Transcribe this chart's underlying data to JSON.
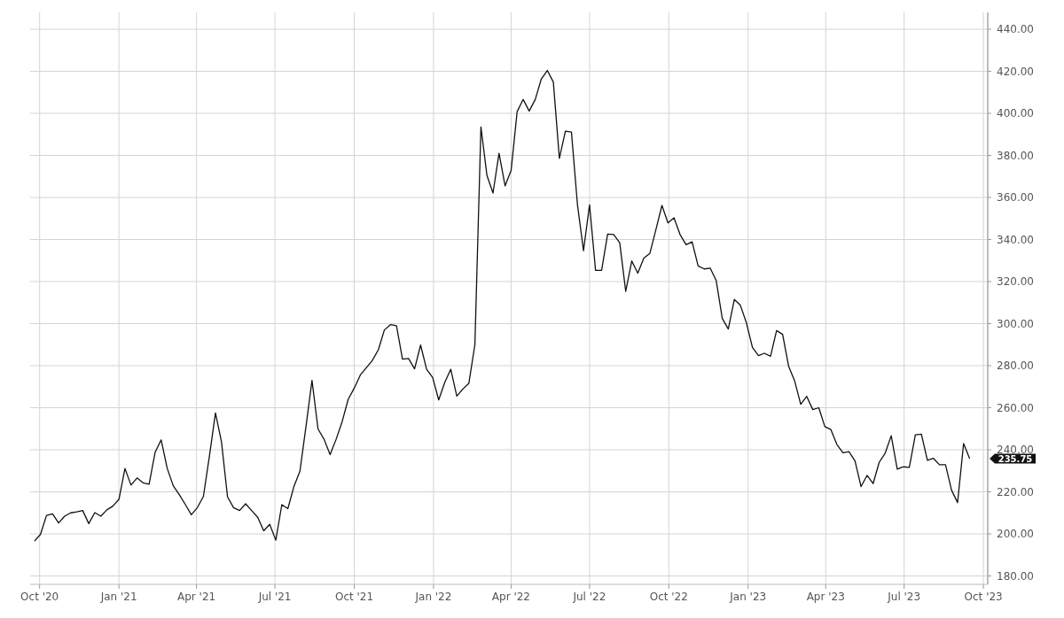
{
  "chart_data": {
    "type": "line",
    "x": [
      "2020-09-25",
      "2020-10-02",
      "2020-10-09",
      "2020-10-16",
      "2020-10-23",
      "2020-10-30",
      "2020-11-06",
      "2020-11-13",
      "2020-11-20",
      "2020-11-27",
      "2020-12-04",
      "2020-12-11",
      "2020-12-18",
      "2020-12-25",
      "2021-01-01",
      "2021-01-08",
      "2021-01-15",
      "2021-01-22",
      "2021-01-29",
      "2021-02-05",
      "2021-02-12",
      "2021-02-19",
      "2021-02-26",
      "2021-03-05",
      "2021-03-12",
      "2021-03-19",
      "2021-03-26",
      "2021-04-02",
      "2021-04-09",
      "2021-04-16",
      "2021-04-23",
      "2021-04-30",
      "2021-05-07",
      "2021-05-14",
      "2021-05-21",
      "2021-05-28",
      "2021-06-04",
      "2021-06-11",
      "2021-06-18",
      "2021-06-25",
      "2021-07-02",
      "2021-07-09",
      "2021-07-16",
      "2021-07-23",
      "2021-07-30",
      "2021-08-06",
      "2021-08-13",
      "2021-08-20",
      "2021-08-27",
      "2021-09-03",
      "2021-09-10",
      "2021-09-17",
      "2021-09-24",
      "2021-10-01",
      "2021-10-08",
      "2021-10-15",
      "2021-10-22",
      "2021-10-29",
      "2021-11-05",
      "2021-11-12",
      "2021-11-19",
      "2021-11-26",
      "2021-12-03",
      "2021-12-10",
      "2021-12-17",
      "2021-12-24",
      "2021-12-31",
      "2022-01-07",
      "2022-01-14",
      "2022-01-21",
      "2022-01-28",
      "2022-02-04",
      "2022-02-11",
      "2022-02-18",
      "2022-02-25",
      "2022-03-04",
      "2022-03-11",
      "2022-03-18",
      "2022-03-25",
      "2022-04-01",
      "2022-04-08",
      "2022-04-15",
      "2022-04-22",
      "2022-04-29",
      "2022-05-06",
      "2022-05-13",
      "2022-05-20",
      "2022-05-27",
      "2022-06-03",
      "2022-06-10",
      "2022-06-17",
      "2022-06-24",
      "2022-07-01",
      "2022-07-08",
      "2022-07-15",
      "2022-07-22",
      "2022-07-29",
      "2022-08-05",
      "2022-08-12",
      "2022-08-19",
      "2022-08-26",
      "2022-09-02",
      "2022-09-09",
      "2022-09-16",
      "2022-09-23",
      "2022-09-30",
      "2022-10-07",
      "2022-10-14",
      "2022-10-21",
      "2022-10-28",
      "2022-11-04",
      "2022-11-11",
      "2022-11-18",
      "2022-11-25",
      "2022-12-02",
      "2022-12-09",
      "2022-12-16",
      "2022-12-23",
      "2022-12-30",
      "2023-01-06",
      "2023-01-13",
      "2023-01-20",
      "2023-01-27",
      "2023-02-03",
      "2023-02-10",
      "2023-02-17",
      "2023-02-24",
      "2023-03-03",
      "2023-03-10",
      "2023-03-17",
      "2023-03-24",
      "2023-03-31",
      "2023-04-07",
      "2023-04-14",
      "2023-04-21",
      "2023-04-28",
      "2023-05-05",
      "2023-05-12",
      "2023-05-19",
      "2023-05-26",
      "2023-06-02",
      "2023-06-09",
      "2023-06-16",
      "2023-06-23",
      "2023-06-30",
      "2023-07-07",
      "2023-07-14",
      "2023-07-21",
      "2023-07-28",
      "2023-08-04",
      "2023-08-11",
      "2023-08-18",
      "2023-08-25",
      "2023-09-01",
      "2023-09-08",
      "2023-09-15"
    ],
    "series": [
      {
        "color": "#111111",
        "values": [
          196.6,
          199.8,
          208.8,
          209.5,
          205.2,
          208.4,
          210.0,
          210.5,
          211.1,
          204.9,
          210.1,
          208.4,
          211.4,
          213.2,
          216.4,
          231.1,
          223.2,
          226.6,
          224.3,
          223.6,
          238.8,
          244.7,
          231.2,
          222.9,
          218.7,
          214,
          209.1,
          212.5,
          217.8,
          237,
          257.5,
          243.7,
          217.6,
          212.5,
          211.1,
          214.3,
          211.1,
          207.9,
          201.5,
          204.5,
          197.0,
          213.9,
          212,
          222.5,
          229.8,
          251,
          273.0,
          249.9,
          245.0,
          237.7,
          245,
          253.4,
          264,
          269.3,
          275.5,
          279,
          282.5,
          287.6,
          297.0,
          299.5,
          299.0,
          283.1,
          283.4,
          278.5,
          289.8,
          278.3,
          274.4,
          263.7,
          272.0,
          278.3,
          265.5,
          268.9,
          271.6,
          290.0,
          393.5,
          370.4,
          362.1,
          381.0,
          365.5,
          372.8,
          400.8,
          406.6,
          401.1,
          406.6,
          416.3,
          420.4,
          414.9,
          378.6,
          391.5,
          391.1,
          356.5,
          334.7,
          356.5,
          325.3,
          325.3,
          342.6,
          342.4,
          338.5,
          315.3,
          329.8,
          324.0,
          331.2,
          333.4,
          344.7,
          356.2,
          347.9,
          350.3,
          342.4,
          337.5,
          338.9,
          327.4,
          326.0,
          326.4,
          320.4,
          302.5,
          297.4,
          311.5,
          308.7,
          300.4,
          288.7,
          284.8,
          285.9,
          284.5,
          296.7,
          294.9,
          279.7,
          272.7,
          261.6,
          265.4,
          259.1,
          260.0,
          251.0,
          249.6,
          242.5,
          238.6,
          239.1,
          234.7,
          222.5,
          227.8,
          223.9,
          234.0,
          238.4,
          246.7,
          230.8,
          231.9,
          231.6,
          247.1,
          247.4,
          235.0,
          235.9,
          232.9,
          232.9,
          220.8,
          214.9,
          243.0,
          235.75
        ]
      }
    ],
    "xlim": [
      "2020-09-20",
      "2023-10-06"
    ],
    "xticks": [
      {
        "value": "2020-10-01",
        "label": "Oct '20"
      },
      {
        "value": "2021-01-01",
        "label": "Jan '21"
      },
      {
        "value": "2021-04-01",
        "label": "Apr '21"
      },
      {
        "value": "2021-07-01",
        "label": "Jul '21"
      },
      {
        "value": "2021-10-01",
        "label": "Oct '21"
      },
      {
        "value": "2022-01-01",
        "label": "Jan '22"
      },
      {
        "value": "2022-04-01",
        "label": "Apr '22"
      },
      {
        "value": "2022-07-01",
        "label": "Jul '22"
      },
      {
        "value": "2022-10-01",
        "label": "Oct '22"
      },
      {
        "value": "2023-01-01",
        "label": "Jan '23"
      },
      {
        "value": "2023-04-01",
        "label": "Apr '23"
      },
      {
        "value": "2023-07-01",
        "label": "Jul '23"
      },
      {
        "value": "2023-10-01",
        "label": "Oct '23"
      }
    ],
    "ylim": [
      176,
      448
    ],
    "yticks": [
      {
        "value": 180,
        "label": "180.00"
      },
      {
        "value": 200,
        "label": "200.00"
      },
      {
        "value": 220,
        "label": "220.00"
      },
      {
        "value": 240,
        "label": "240.00"
      },
      {
        "value": 260,
        "label": "260.00"
      },
      {
        "value": 280,
        "label": "280.00"
      },
      {
        "value": 300,
        "label": "300.00"
      },
      {
        "value": 320,
        "label": "320.00"
      },
      {
        "value": 340,
        "label": "340.00"
      },
      {
        "value": 360,
        "label": "360.00"
      },
      {
        "value": 380,
        "label": "380.00"
      },
      {
        "value": 400,
        "label": "400.00"
      },
      {
        "value": 420,
        "label": "420.00"
      },
      {
        "value": 440,
        "label": "440.00"
      }
    ],
    "grid": true,
    "line_style": "solid",
    "marker": "none",
    "annotations": [
      "235.75"
    ]
  }
}
